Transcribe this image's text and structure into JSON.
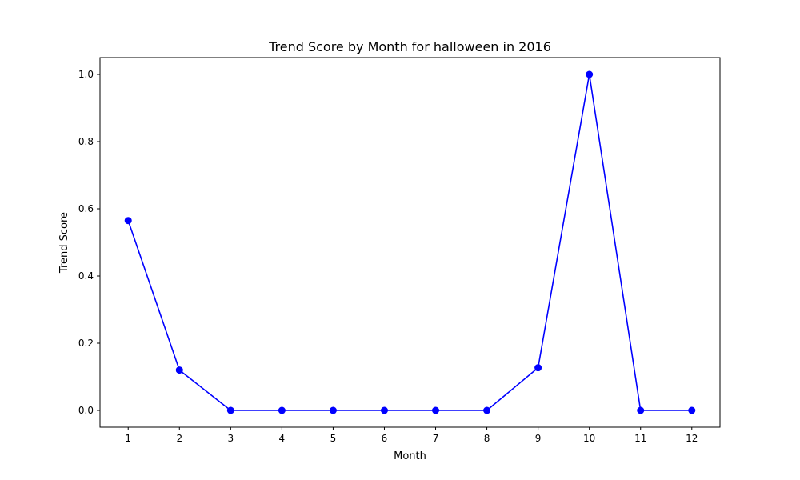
{
  "chart_data": {
    "type": "line",
    "title": "Trend Score by Month for halloween in 2016",
    "xlabel": "Month",
    "ylabel": "Trend Score",
    "x": [
      1,
      2,
      3,
      4,
      5,
      6,
      7,
      8,
      9,
      10,
      11,
      12
    ],
    "xticks": [
      "1",
      "2",
      "3",
      "4",
      "5",
      "6",
      "7",
      "8",
      "9",
      "10",
      "11",
      "12"
    ],
    "yticks": [
      "0.0",
      "0.2",
      "0.4",
      "0.6",
      "0.8",
      "1.0"
    ],
    "xlim": [
      0.45,
      12.55
    ],
    "ylim": [
      -0.05,
      1.05
    ],
    "grid": false,
    "legend": "none",
    "series": [
      {
        "color": "#0000ff",
        "marker": "circle",
        "values": [
          0.565,
          0.12,
          0.0,
          0.0,
          0.0,
          0.0,
          0.0,
          0.0,
          0.127,
          1.0,
          0.0,
          0.0
        ]
      }
    ]
  }
}
